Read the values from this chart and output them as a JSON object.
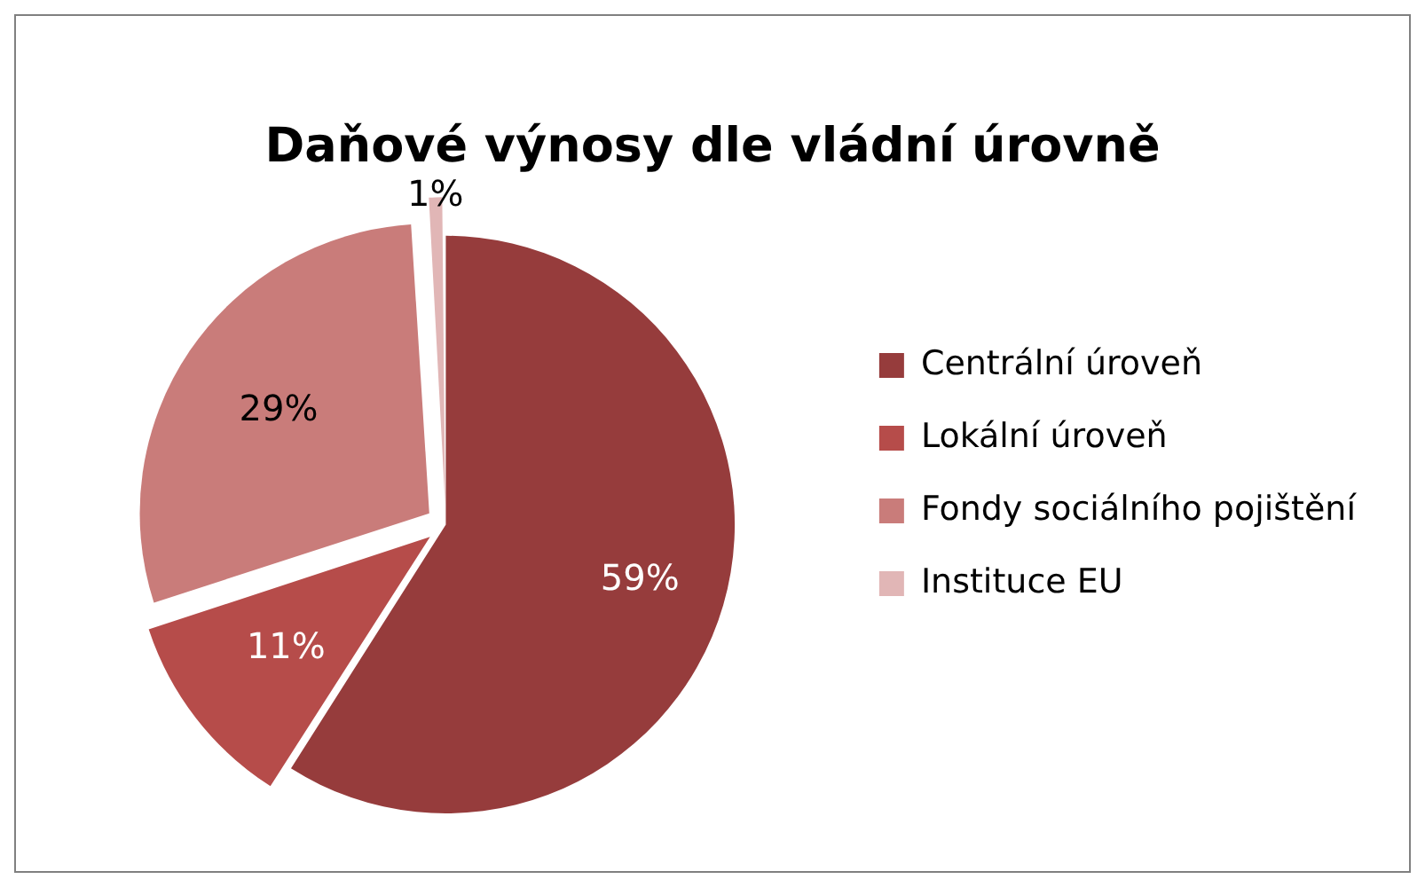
{
  "chart_data": {
    "type": "pie",
    "title": "Daňové výnosy dle vládní úrovně",
    "categories": [
      "Centrální úroveň",
      "Lokální úroveň",
      "Fondy sociálního pojištění",
      "Instituce EU"
    ],
    "values": [
      59,
      11,
      29,
      1
    ],
    "colors": [
      "#963c3c",
      "#b64c4a",
      "#c97c7a",
      "#e1b6b6"
    ],
    "value_labels": [
      "59%",
      "11%",
      "29%",
      "1%"
    ],
    "legend": "right"
  }
}
